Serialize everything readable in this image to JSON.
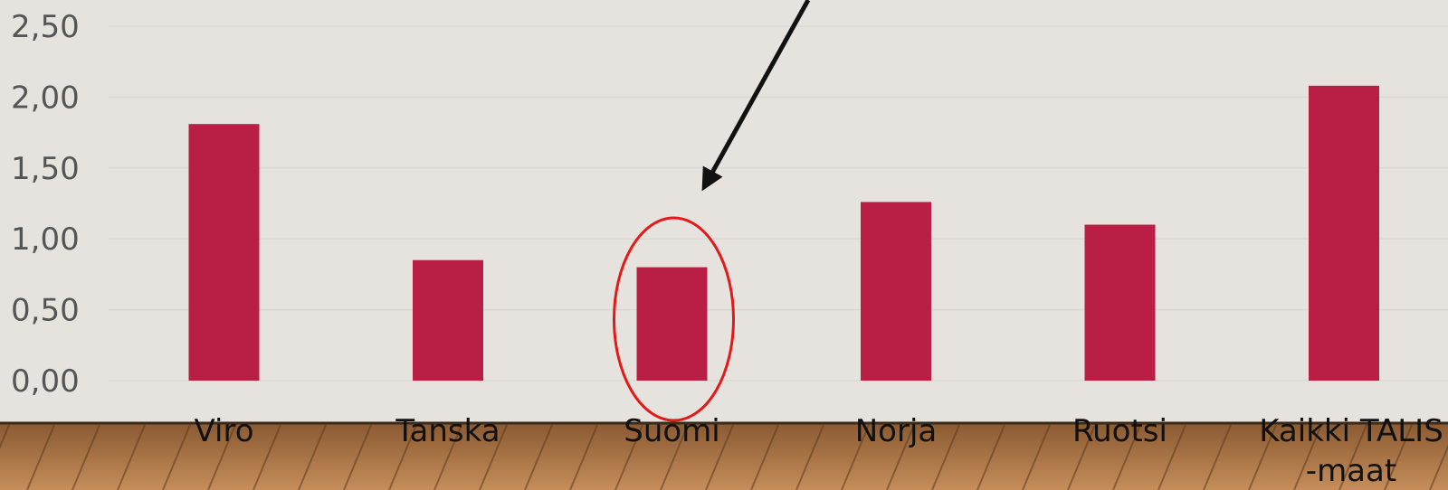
{
  "chart_data": {
    "type": "bar",
    "categories": [
      "Viro",
      "Tanska",
      "Suomi",
      "Norja",
      "Ruotsi",
      "Kaikki TALIS -maat"
    ],
    "category_lines": [
      [
        "Viro"
      ],
      [
        "Tanska"
      ],
      [
        "Suomi"
      ],
      [
        "Norja"
      ],
      [
        "Ruotsi"
      ],
      [
        "Kaikki TALIS",
        "-maat"
      ]
    ],
    "values": [
      1.81,
      0.85,
      0.8,
      1.26,
      1.1,
      2.08
    ],
    "y_ticks": [
      "0,00",
      "0,50",
      "1,00",
      "1,50",
      "2,00",
      "2,50"
    ],
    "y_tick_values": [
      0,
      0.5,
      1.0,
      1.5,
      2.0,
      2.5
    ],
    "ylim": [
      0,
      2.5
    ],
    "title": "",
    "xlabel": "",
    "ylabel": "",
    "grid": true,
    "legend": "none",
    "highlighted_category": "Suomi",
    "annotation": "arrow pointing to circled Suomi bar"
  },
  "colors": {
    "bar": "#b91f44",
    "highlight_ellipse": "#e21a1a",
    "arrow": "#111111",
    "background": "#e6e3de",
    "gridline": "#dcd9d3",
    "axis_text": "#555555",
    "category_text": "#111111",
    "floor": "#b07a4a"
  }
}
